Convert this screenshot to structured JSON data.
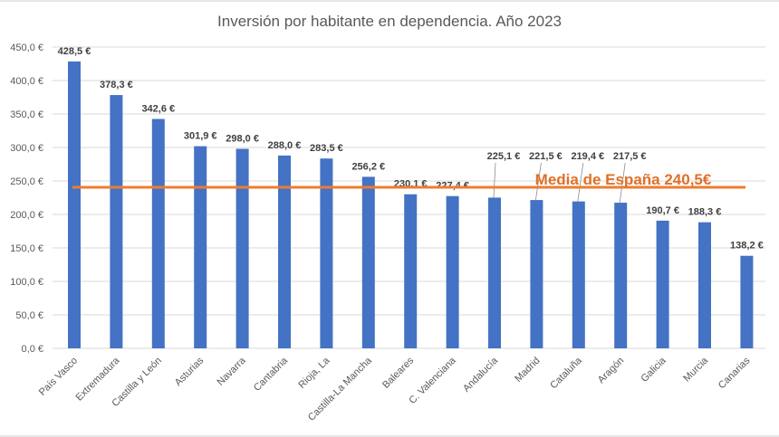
{
  "chart_data": {
    "type": "bar",
    "title": "Inversión por habitante en dependencia. Año 2023",
    "xlabel": "",
    "ylabel": "",
    "ylim": [
      0,
      450
    ],
    "ytick_step": 50,
    "ytick_labels": [
      "0,0 €",
      "50,0 €",
      "100,0 €",
      "150,0 €",
      "200,0 €",
      "250,0 €",
      "300,0 €",
      "350,0 €",
      "400,0 €",
      "450,0 €"
    ],
    "grid": true,
    "categories": [
      "País Vasco",
      "Extremadura",
      "Castilla y León",
      "Asturias",
      "Navarra",
      "Cantabria",
      "Rioja, La",
      "Castilla-La Mancha",
      "Baleares",
      "C. Valenciana",
      "Andalucía",
      "Madrid",
      "Cataluña",
      "Aragón",
      "Galicia",
      "Murcia",
      "Canarias"
    ],
    "values": [
      428.5,
      378.3,
      342.6,
      301.9,
      298.0,
      288.0,
      283.5,
      256.2,
      230.1,
      227.4,
      225.1,
      221.5,
      219.4,
      217.5,
      190.7,
      188.3,
      138.2
    ],
    "data_labels": [
      "428,5 €",
      "378,3 €",
      "342,6 €",
      "301,9 €",
      "298,0 €",
      "288,0 €",
      "283,5 €",
      "256,2 €",
      "230,1 €",
      "227,4 €",
      "225,1 €",
      "221,5 €",
      "219,4 €",
      "217,5 €",
      "190,7 €",
      "188,3 €",
      "138,2 €"
    ],
    "reference_line": {
      "value": 240.5,
      "label": "Media de España 240,5€"
    },
    "colors": {
      "bar": "#4472c4",
      "average": "#ed7d31",
      "average_text": "#e07027",
      "grid": "#d9d9d9"
    },
    "legend": "none"
  }
}
